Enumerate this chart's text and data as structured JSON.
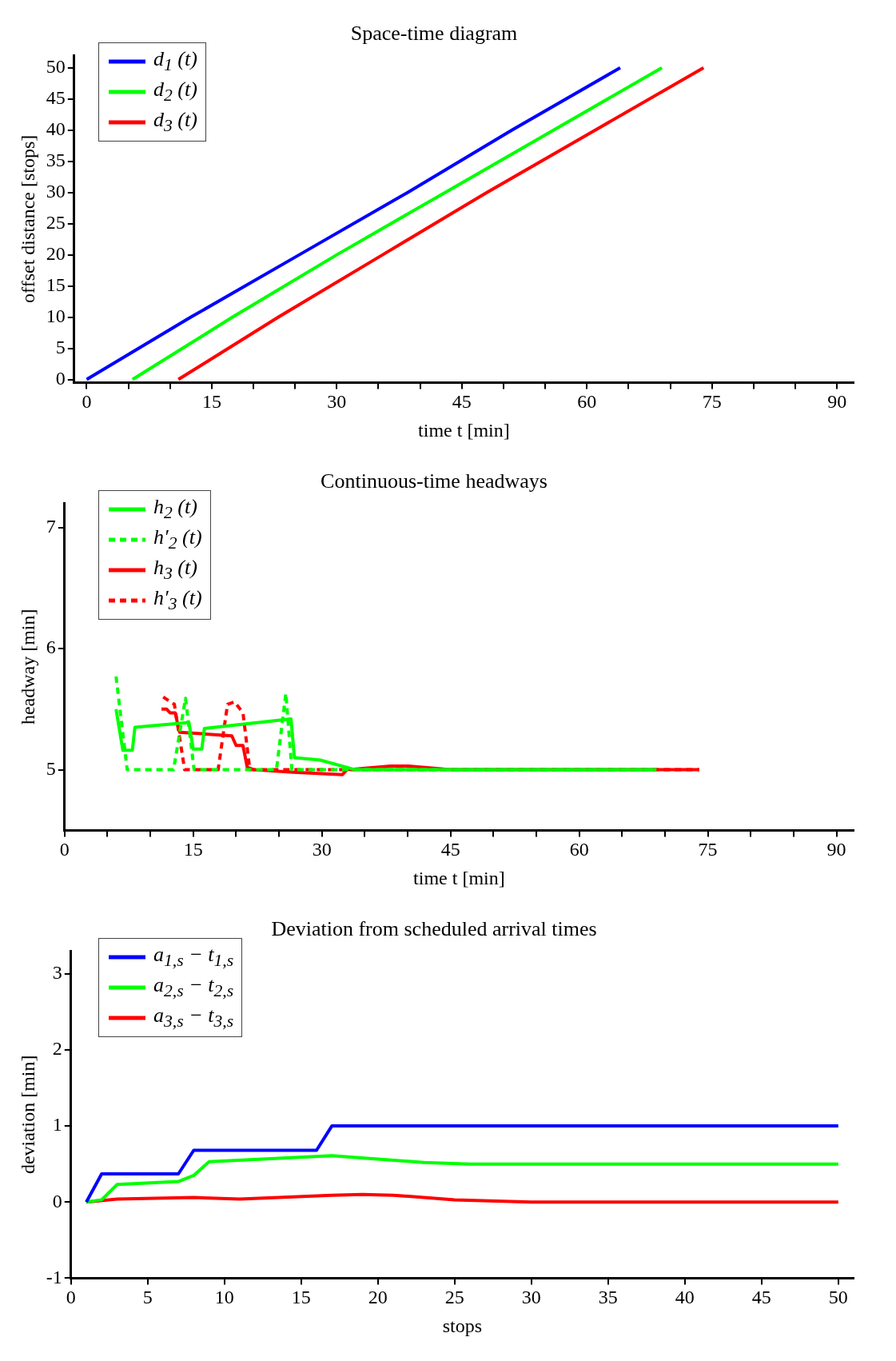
{
  "chart_data": [
    {
      "type": "line",
      "title": "Space-time diagram",
      "xlabel": "time t [min]",
      "ylabel": "offset distance [stops]",
      "xlim": [
        -1.5,
        92
      ],
      "ylim": [
        -0.5,
        52
      ],
      "xticks": [
        0,
        {
          "value": 5,
          "label": null
        },
        {
          "value": 10,
          "label": null
        },
        15,
        {
          "value": 20,
          "label": null
        },
        {
          "value": 25,
          "label": null
        },
        30,
        {
          "value": 35,
          "label": null
        },
        {
          "value": 40,
          "label": null
        },
        45,
        {
          "value": 50,
          "label": null
        },
        {
          "value": 55,
          "label": null
        },
        60,
        {
          "value": 65,
          "label": null
        },
        {
          "value": 70,
          "label": null
        },
        75,
        {
          "value": 80,
          "label": null
        },
        {
          "value": 85,
          "label": null
        },
        90
      ],
      "yticks": [
        0,
        5,
        10,
        15,
        20,
        25,
        30,
        35,
        40,
        45,
        50
      ],
      "grid": false,
      "legend": "top left",
      "marker": "none",
      "series": [
        {
          "name": "d$_{1}$ (t)",
          "color": "#0000ff",
          "x": [
            0,
            12.5,
            25.5,
            38.5,
            51,
            64
          ],
          "values": [
            0,
            10,
            20,
            30,
            40,
            50
          ]
        },
        {
          "name": "d$_{2}$ (t)",
          "color": "#00ff00",
          "x": [
            5.5,
            17.5,
            30,
            43,
            56,
            69
          ],
          "values": [
            0,
            10,
            20,
            30,
            40,
            50
          ]
        },
        {
          "name": "d$_{3}$ (t)",
          "color": "#ff0000",
          "x": [
            11,
            23,
            35.5,
            48,
            61,
            74
          ],
          "values": [
            0,
            10,
            20,
            30,
            40,
            50
          ]
        }
      ]
    },
    {
      "type": "line",
      "title": "Continuous-time headways",
      "xlabel": "time t [min]",
      "ylabel": "headway [min]",
      "xlim": [
        0,
        92
      ],
      "ylim": [
        4.5,
        7.2
      ],
      "xticks": [
        0,
        {
          "value": 5,
          "label": null
        },
        {
          "value": 10,
          "label": null
        },
        15,
        {
          "value": 20,
          "label": null
        },
        {
          "value": 25,
          "label": null
        },
        30,
        {
          "value": 35,
          "label": null
        },
        {
          "value": 40,
          "label": null
        },
        45,
        {
          "value": 50,
          "label": null
        },
        {
          "value": 55,
          "label": null
        },
        60,
        {
          "value": 65,
          "label": null
        },
        {
          "value": 70,
          "label": null
        },
        75,
        {
          "value": 80,
          "label": null
        },
        {
          "value": 85,
          "label": null
        },
        90
      ],
      "yticks": [
        5,
        6,
        7
      ],
      "grid": false,
      "legend": "top left",
      "marker": "none",
      "series": [
        {
          "name": "h$_{2}$ (t)",
          "color": "#00ff00",
          "line_style": "solid",
          "x": [
            6,
            6.8,
            7.9,
            8.2,
            14.5,
            15,
            16,
            16.3,
            26.4,
            26.8,
            29.8,
            33.9,
            69
          ],
          "values": [
            5.5,
            5.16,
            5.16,
            5.35,
            5.39,
            5.17,
            5.17,
            5.34,
            5.42,
            5.1,
            5.08,
            5,
            5
          ]
        },
        {
          "name": "h′$_{2}$ (t)",
          "color": "#00ff00",
          "line_style": "dashed",
          "x": [
            6,
            7.3,
            12.7,
            14.1,
            15.1,
            24.7,
            25.8,
            26.5,
            69
          ],
          "values": [
            5.77,
            5,
            5,
            5.59,
            5,
            5,
            5.63,
            5,
            5
          ]
        },
        {
          "name": "h$_{3}$ (t)",
          "color": "#ff0000",
          "line_style": "solid",
          "x": [
            11.3,
            11.9,
            12.3,
            12.9,
            13.4,
            19.5,
            20,
            20.8,
            21.3,
            22.1,
            26.7,
            32.4,
            32.9,
            38,
            40.1,
            45.2,
            74
          ],
          "values": [
            5.5,
            5.5,
            5.47,
            5.47,
            5.31,
            5.28,
            5.2,
            5.2,
            5.02,
            5,
            4.98,
            4.96,
            5,
            5.03,
            5.03,
            5,
            5
          ]
        },
        {
          "name": "h′$_{3}$ (t)",
          "color": "#ff0000",
          "line_style": "dashed",
          "x": [
            11.5,
            12.8,
            14,
            17.9,
            19,
            19.8,
            20.8,
            21.6,
            74
          ],
          "values": [
            5.6,
            5.54,
            5,
            5,
            5.54,
            5.56,
            5.47,
            5,
            5
          ]
        }
      ]
    },
    {
      "type": "line",
      "title": "Deviation from scheduled arrival times",
      "xlabel": "stops",
      "ylabel": "deviation [min]",
      "xlim": [
        0,
        51
      ],
      "ylim": [
        -1,
        3.3
      ],
      "xticks": [
        0,
        5,
        10,
        15,
        20,
        25,
        30,
        35,
        40,
        45,
        50
      ],
      "yticks": [
        -1,
        0,
        1,
        2,
        3
      ],
      "grid": false,
      "legend": "top left",
      "marker": "none",
      "series": [
        {
          "name": "a$_{1,s}$ − t$_{1,s}$",
          "color": "#0000ff",
          "x": [
            1,
            2,
            7,
            8,
            16,
            17,
            50
          ],
          "values": [
            0,
            0.37,
            0.37,
            0.68,
            0.68,
            1,
            1
          ]
        },
        {
          "name": "a$_{2,s}$ − t$_{2,s}$",
          "color": "#00ff00",
          "x": [
            1,
            2,
            3,
            7,
            8,
            9,
            17,
            23,
            26,
            50
          ],
          "values": [
            0,
            0.03,
            0.23,
            0.27,
            0.35,
            0.53,
            0.61,
            0.52,
            0.5,
            0.5
          ]
        },
        {
          "name": "a$_{3,s}$ − t$_{3,s}$",
          "color": "#ff0000",
          "x": [
            1,
            3,
            8,
            11,
            17,
            19,
            21,
            25,
            30,
            50
          ],
          "values": [
            0,
            0.04,
            0.06,
            0.04,
            0.09,
            0.1,
            0.09,
            0.03,
            0,
            0
          ]
        }
      ]
    }
  ]
}
